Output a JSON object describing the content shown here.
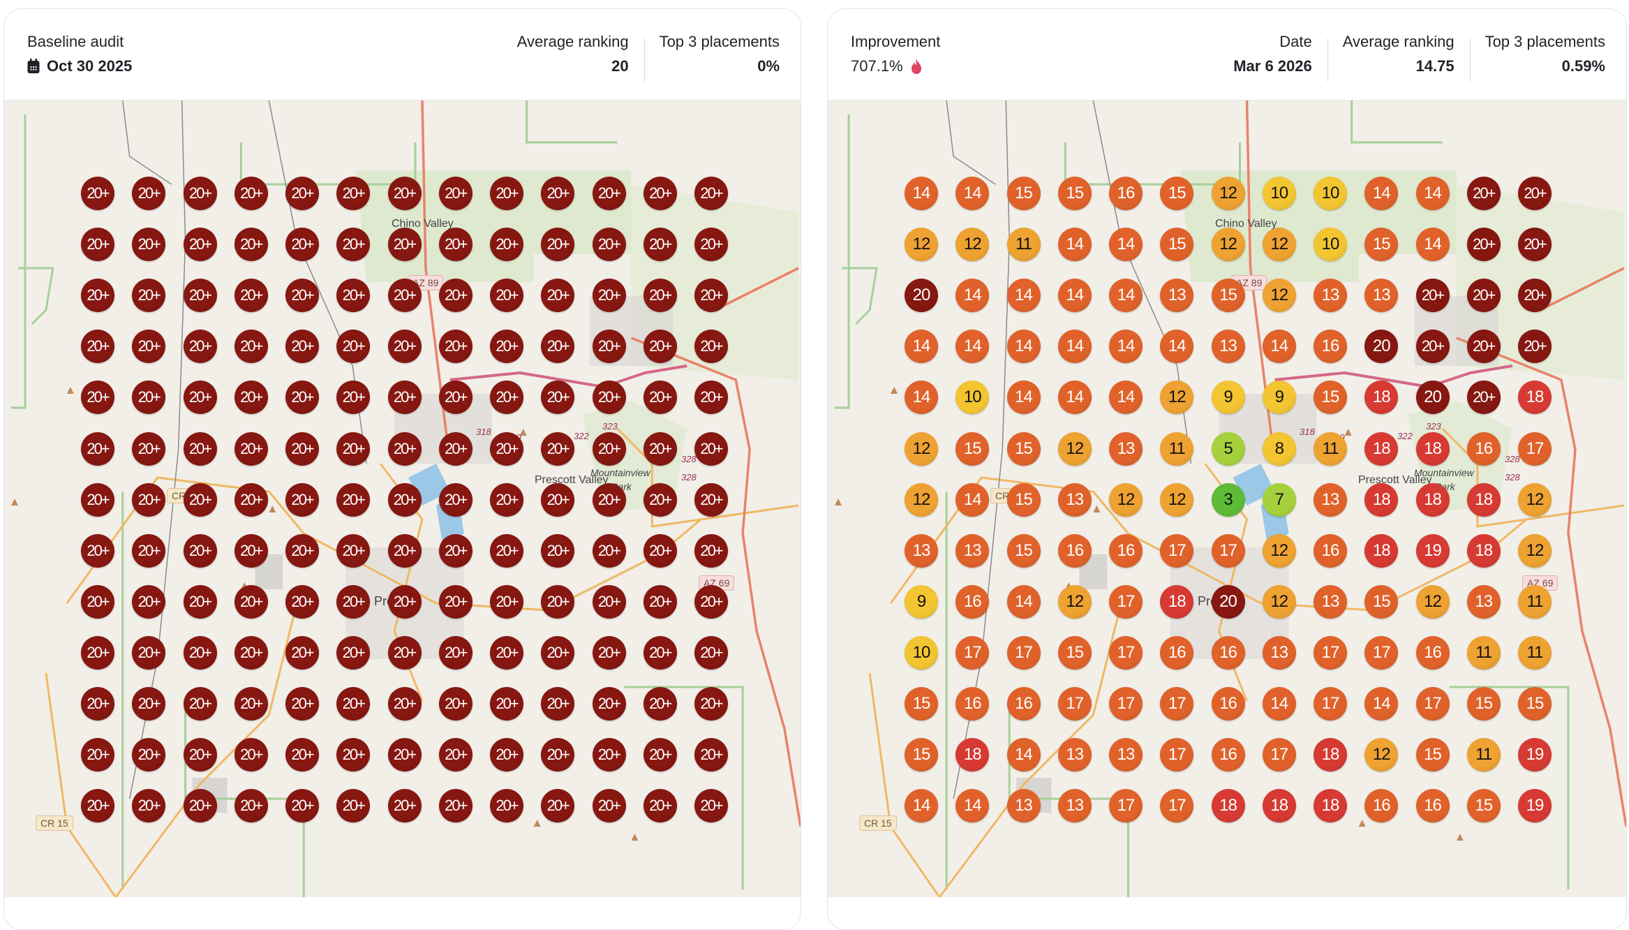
{
  "baseline": {
    "title": "Baseline audit",
    "date": "Oct 30 2025",
    "date_icon": "calendar-icon",
    "stats": [
      {
        "label": "Average ranking",
        "value": "20"
      },
      {
        "label": "Top 3 placements",
        "value": "0%"
      }
    ],
    "grid": [
      [
        "20+",
        "20+",
        "20+",
        "20+",
        "20+",
        "20+",
        "20+",
        "20+",
        "20+",
        "20+",
        "20+",
        "20+",
        "20+"
      ],
      [
        "20+",
        "20+",
        "20+",
        "20+",
        "20+",
        "20+",
        "20+",
        "20+",
        "20+",
        "20+",
        "20+",
        "20+",
        "20+"
      ],
      [
        "20+",
        "20+",
        "20+",
        "20+",
        "20+",
        "20+",
        "20+",
        "20+",
        "20+",
        "20+",
        "20+",
        "20+",
        "20+"
      ],
      [
        "20+",
        "20+",
        "20+",
        "20+",
        "20+",
        "20+",
        "20+",
        "20+",
        "20+",
        "20+",
        "20+",
        "20+",
        "20+"
      ],
      [
        "20+",
        "20+",
        "20+",
        "20+",
        "20+",
        "20+",
        "20+",
        "20+",
        "20+",
        "20+",
        "20+",
        "20+",
        "20+"
      ],
      [
        "20+",
        "20+",
        "20+",
        "20+",
        "20+",
        "20+",
        "20+",
        "20+",
        "20+",
        "20+",
        "20+",
        "20+",
        "20+"
      ],
      [
        "20+",
        "20+",
        "20+",
        "20+",
        "20+",
        "20+",
        "20+",
        "20+",
        "20+",
        "20+",
        "20+",
        "20+",
        "20+"
      ],
      [
        "20+",
        "20+",
        "20+",
        "20+",
        "20+",
        "20+",
        "20+",
        "20+",
        "20+",
        "20+",
        "20+",
        "20+",
        "20+"
      ],
      [
        "20+",
        "20+",
        "20+",
        "20+",
        "20+",
        "20+",
        "20+",
        "20+",
        "20+",
        "20+",
        "20+",
        "20+",
        "20+"
      ],
      [
        "20+",
        "20+",
        "20+",
        "20+",
        "20+",
        "20+",
        "20+",
        "20+",
        "20+",
        "20+",
        "20+",
        "20+",
        "20+"
      ],
      [
        "20+",
        "20+",
        "20+",
        "20+",
        "20+",
        "20+",
        "20+",
        "20+",
        "20+",
        "20+",
        "20+",
        "20+",
        "20+"
      ],
      [
        "20+",
        "20+",
        "20+",
        "20+",
        "20+",
        "20+",
        "20+",
        "20+",
        "20+",
        "20+",
        "20+",
        "20+",
        "20+"
      ],
      [
        "20+",
        "20+",
        "20+",
        "20+",
        "20+",
        "20+",
        "20+",
        "20+",
        "20+",
        "20+",
        "20+",
        "20+",
        "20+"
      ]
    ]
  },
  "current": {
    "title": "Improvement",
    "improvement": "707.1%",
    "improvement_icon": "flame-icon",
    "stats": [
      {
        "label": "Date",
        "value": "Mar 6 2026"
      },
      {
        "label": "Average ranking",
        "value": "14.75"
      },
      {
        "label": "Top 3 placements",
        "value": "0.59%"
      }
    ],
    "grid": [
      [
        "14",
        "14",
        "15",
        "15",
        "16",
        "15",
        "12",
        "10",
        "10",
        "14",
        "14",
        "20+",
        "20+"
      ],
      [
        "12",
        "12",
        "11",
        "14",
        "14",
        "15",
        "12",
        "12",
        "10",
        "15",
        "14",
        "20+",
        "20+"
      ],
      [
        "20",
        "14",
        "14",
        "14",
        "14",
        "13",
        "15",
        "12",
        "13",
        "13",
        "20+",
        "20+",
        "20+"
      ],
      [
        "14",
        "14",
        "14",
        "14",
        "14",
        "14",
        "13",
        "14",
        "16",
        "20",
        "20+",
        "20+",
        "20+"
      ],
      [
        "14",
        "10",
        "14",
        "14",
        "14",
        "12",
        "9",
        "9",
        "15",
        "18",
        "20",
        "20+",
        "18"
      ],
      [
        "12",
        "15",
        "15",
        "12",
        "13",
        "11",
        "5",
        "8",
        "11",
        "18",
        "18",
        "16",
        "17"
      ],
      [
        "12",
        "14",
        "15",
        "13",
        "12",
        "12",
        "3",
        "7",
        "13",
        "18",
        "18",
        "18",
        "12"
      ],
      [
        "13",
        "13",
        "15",
        "16",
        "16",
        "17",
        "17",
        "12",
        "16",
        "18",
        "19",
        "18",
        "12"
      ],
      [
        "9",
        "16",
        "14",
        "12",
        "17",
        "18",
        "20",
        "12",
        "13",
        "15",
        "12",
        "13",
        "11"
      ],
      [
        "10",
        "17",
        "17",
        "15",
        "17",
        "16",
        "16",
        "13",
        "17",
        "17",
        "16",
        "11",
        "11"
      ],
      [
        "15",
        "16",
        "16",
        "17",
        "17",
        "17",
        "16",
        "14",
        "17",
        "14",
        "17",
        "15",
        "15"
      ],
      [
        "15",
        "18",
        "14",
        "13",
        "13",
        "17",
        "16",
        "17",
        "18",
        "12",
        "15",
        "11",
        "19"
      ],
      [
        "14",
        "14",
        "13",
        "13",
        "17",
        "17",
        "18",
        "18",
        "18",
        "16",
        "16",
        "15",
        "19"
      ]
    ]
  },
  "map_labels": {
    "chino_valley": "Chino Valley",
    "prescott": "Prescott",
    "prescott_valley": "Prescott Valley",
    "mountainview_park_1": "Mountainview",
    "mountainview_park_2": "Park",
    "az89": "AZ 89",
    "az69": "AZ 69",
    "cr15": "CR 15",
    "cr1x": "CR 1",
    "r318": "318",
    "r319": "319",
    "r322": "322",
    "r323": "323",
    "r328a": "328",
    "r328b": "328"
  },
  "colors": {
    "rank_1_3": "#5dbb36",
    "rank_4_7": "#a6d13d",
    "rank_8_10": "#f2c531",
    "rank_11_12": "#eea231",
    "rank_13_17": "#e0622a",
    "rank_18_19": "#d63a32",
    "rank_20_plus": "#861711",
    "flame": "#e04462"
  }
}
